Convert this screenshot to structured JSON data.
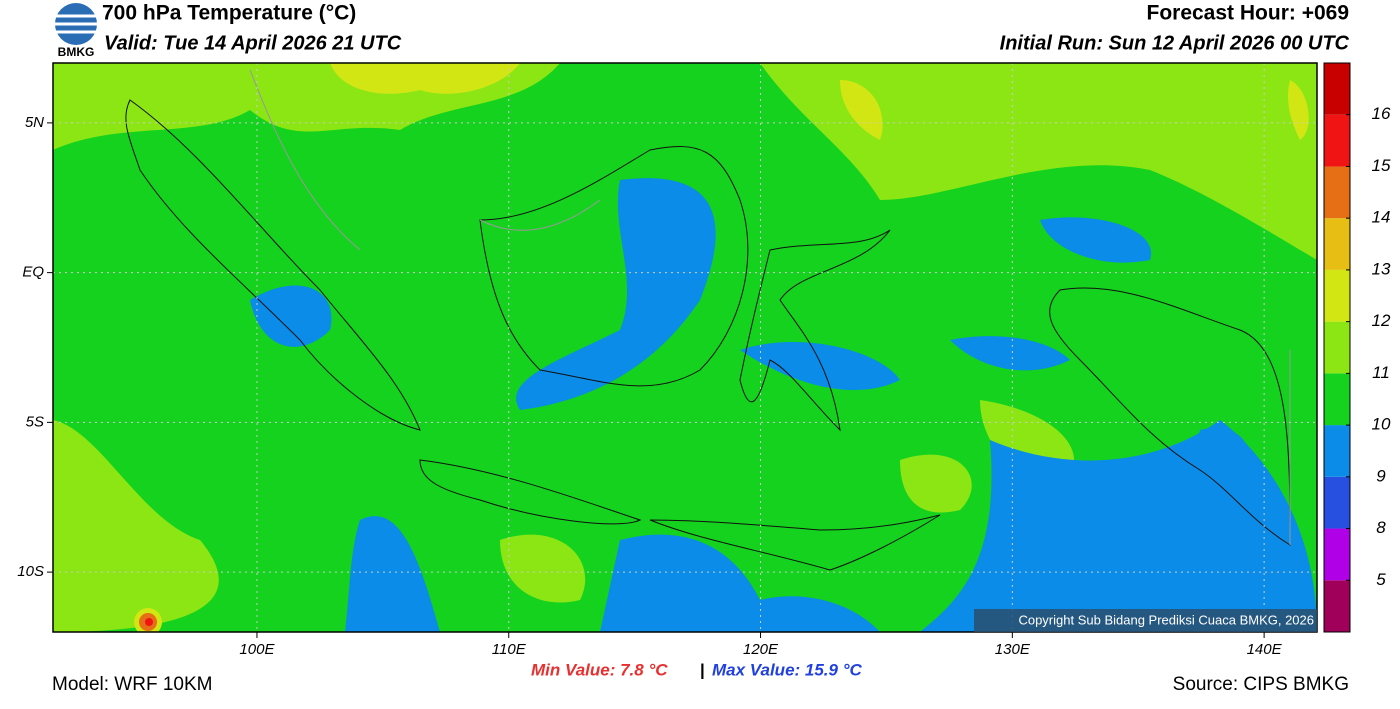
{
  "header": {
    "title": "700 hPa Temperature (°C)",
    "valid": "Valid: Tue 14 April 2026 21 UTC",
    "forecast_hour": "Forecast Hour: +069",
    "initial_run": "Initial Run: Sun 12 April 2026 00 UTC",
    "logo_text": "BMKG"
  },
  "map": {
    "lon_range": [
      91.9,
      142.1
    ],
    "lat_range": [
      -12,
      7
    ],
    "lon_ticks": [
      {
        "value": 100,
        "label": "100E"
      },
      {
        "value": 110,
        "label": "110E"
      },
      {
        "value": 120,
        "label": "120E"
      },
      {
        "value": 130,
        "label": "130E"
      },
      {
        "value": 140,
        "label": "140E"
      }
    ],
    "lat_ticks": [
      {
        "value": 5,
        "label": "5N"
      },
      {
        "value": 0,
        "label": "EQ"
      },
      {
        "value": -5,
        "label": "5S"
      },
      {
        "value": -10,
        "label": "10S"
      }
    ],
    "copyright": "Copyright Sub Bidang Prediksi Cuaca BMKG, 2026"
  },
  "colorbar": {
    "ticks": [
      5,
      8,
      9,
      10,
      11,
      12,
      13,
      14,
      15,
      16
    ],
    "colors": [
      "#a0005a",
      "#b000e8",
      "#2850e0",
      "#0a8ce8",
      "#14d21e",
      "#8ce614",
      "#d2e614",
      "#e6be14",
      "#e66e14",
      "#f01414",
      "#c80000"
    ]
  },
  "footer": {
    "min_value": "Min Value: 7.8 °C",
    "separator": "|",
    "max_value": "Max Value: 15.9 °C",
    "model": "Model: WRF 10KM",
    "source": "Source: CIPS BMKG"
  }
}
